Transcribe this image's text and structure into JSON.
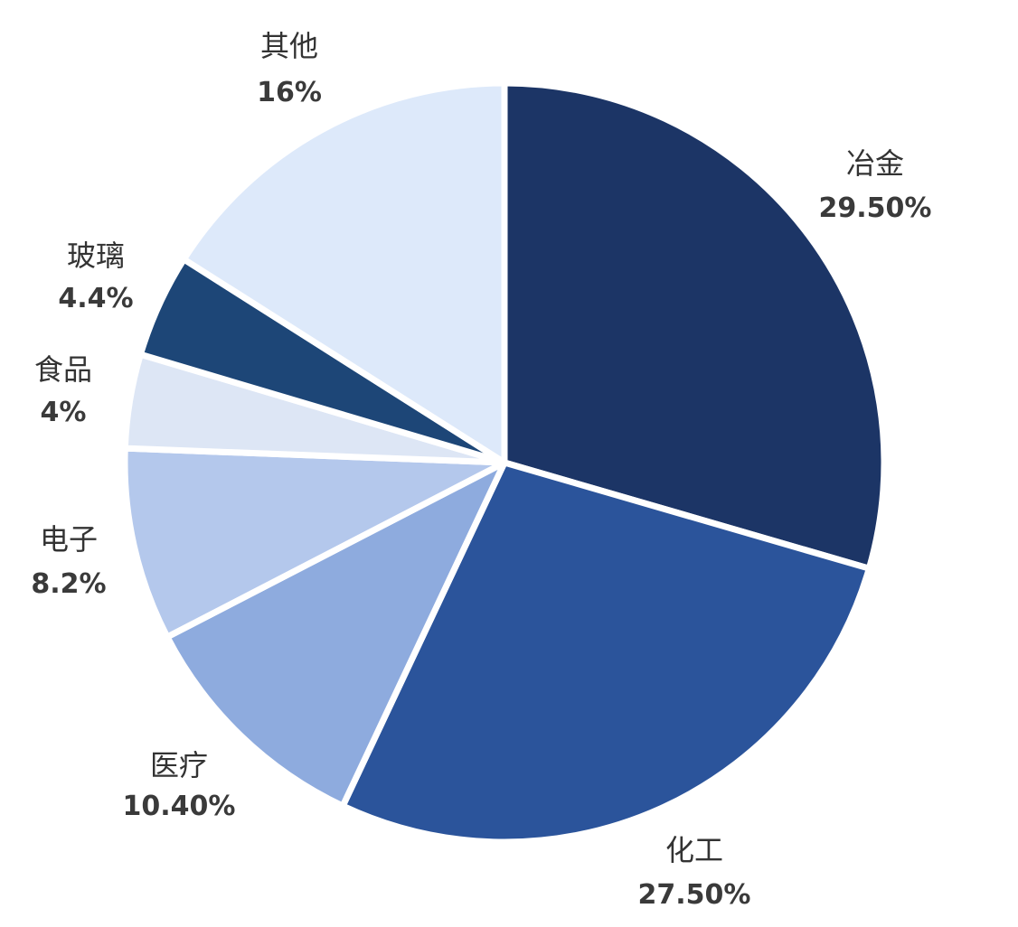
{
  "chart_data": {
    "type": "pie",
    "start_angle_deg": 0,
    "direction": "clockwise",
    "slices": [
      {
        "name": "冶金",
        "value": 29.5,
        "label": "29.50%",
        "color": "#1c3566"
      },
      {
        "name": "化工",
        "value": 27.5,
        "label": "27.50%",
        "color": "#2b549b"
      },
      {
        "name": "医疗",
        "value": 10.4,
        "label": "10.40%",
        "color": "#8eabde"
      },
      {
        "name": "电子",
        "value": 8.2,
        "label": "8.2%",
        "color": "#b4c8ec"
      },
      {
        "name": "食品",
        "value": 4,
        "label": "4%",
        "color": "#dde6f5"
      },
      {
        "name": "玻璃",
        "value": 4.4,
        "label": "4.4%",
        "color": "#1d4677"
      },
      {
        "name": "其他",
        "value": 16,
        "label": "16%",
        "color": "#dde9fa"
      }
    ]
  }
}
